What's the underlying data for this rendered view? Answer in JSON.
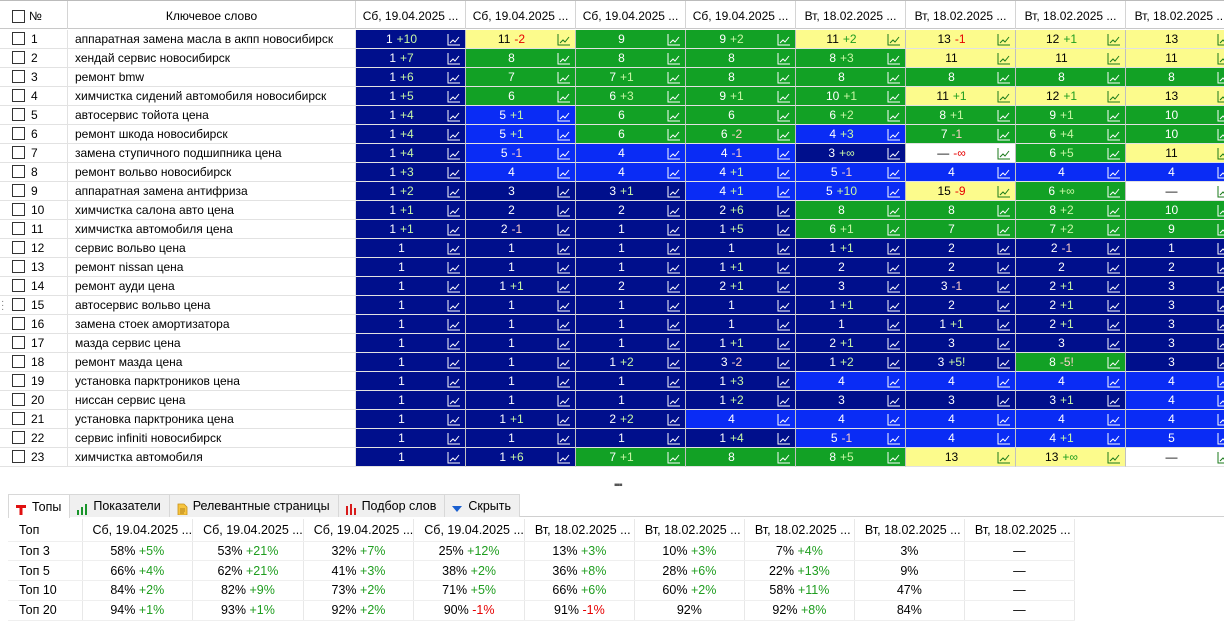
{
  "header": {
    "num_label": "№",
    "keyword_label": "Ключевое слово",
    "sort_indicator": "^",
    "dates": [
      "Сб, 19.04.2025 ...",
      "Сб, 19.04.2025 ...",
      "Сб, 19.04.2025 ...",
      "Сб, 19.04.2025 ...",
      "Вт, 18.02.2025 ...",
      "Вт, 18.02.2025 ...",
      "Вт, 18.02.2025 ...",
      "Вт, 18.02.2025 ..."
    ]
  },
  "legend_colors": {
    "c1": "#000f8c",
    "c2": "#0a2cf5",
    "c3": "#12a125",
    "c4": "#fcfb8c",
    "c5": "#ffffff"
  },
  "rows": [
    {
      "num": "1",
      "kw": "аппаратная замена масла в акпп новосибирск",
      "p": [
        [
          "1",
          "+10",
          "c1"
        ],
        [
          "11",
          "-2",
          "c4"
        ],
        [
          "9",
          "",
          "c3"
        ],
        [
          "9",
          "+2",
          "c3"
        ],
        [
          "11",
          "+2",
          "c4"
        ],
        [
          "13",
          "-1",
          "c4"
        ],
        [
          "12",
          "+1",
          "c4"
        ],
        [
          "13",
          "",
          "c4"
        ]
      ]
    },
    {
      "num": "2",
      "kw": "хендай сервис новосибирск",
      "p": [
        [
          "1",
          "+7",
          "c1"
        ],
        [
          "8",
          "",
          "c3"
        ],
        [
          "8",
          "",
          "c3"
        ],
        [
          "8",
          "",
          "c3"
        ],
        [
          "8",
          "+3",
          "c3"
        ],
        [
          "11",
          "",
          "c4"
        ],
        [
          "11",
          "",
          "c4"
        ],
        [
          "11",
          "",
          "c4"
        ]
      ]
    },
    {
      "num": "3",
      "kw": "ремонт bmw",
      "p": [
        [
          "1",
          "+6",
          "c1"
        ],
        [
          "7",
          "",
          "c3"
        ],
        [
          "7",
          "+1",
          "c3"
        ],
        [
          "8",
          "",
          "c3"
        ],
        [
          "8",
          "",
          "c3"
        ],
        [
          "8",
          "",
          "c3"
        ],
        [
          "8",
          "",
          "c3"
        ],
        [
          "8",
          "",
          "c3"
        ]
      ]
    },
    {
      "num": "4",
      "kw": "химчистка сидений автомобиля новосибирск",
      "p": [
        [
          "1",
          "+5",
          "c1"
        ],
        [
          "6",
          "",
          "c3"
        ],
        [
          "6",
          "+3",
          "c3"
        ],
        [
          "9",
          "+1",
          "c3"
        ],
        [
          "10",
          "+1",
          "c3"
        ],
        [
          "11",
          "+1",
          "c4"
        ],
        [
          "12",
          "+1",
          "c4"
        ],
        [
          "13",
          "",
          "c4"
        ]
      ]
    },
    {
      "num": "5",
      "kw": "автосервис тойота цена",
      "p": [
        [
          "1",
          "+4",
          "c1"
        ],
        [
          "5",
          "+1",
          "c2"
        ],
        [
          "6",
          "",
          "c3"
        ],
        [
          "6",
          "",
          "c3"
        ],
        [
          "6",
          "+2",
          "c3"
        ],
        [
          "8",
          "+1",
          "c3"
        ],
        [
          "9",
          "+1",
          "c3"
        ],
        [
          "10",
          "",
          "c3"
        ]
      ]
    },
    {
      "num": "6",
      "kw": "ремонт шкода новосибирск",
      "p": [
        [
          "1",
          "+4",
          "c1"
        ],
        [
          "5",
          "+1",
          "c2"
        ],
        [
          "6",
          "",
          "c3"
        ],
        [
          "6",
          "-2",
          "c3"
        ],
        [
          "4",
          "+3",
          "c2"
        ],
        [
          "7",
          "-1",
          "c3"
        ],
        [
          "6",
          "+4",
          "c3"
        ],
        [
          "10",
          "",
          "c3"
        ]
      ]
    },
    {
      "num": "7",
      "kw": "замена ступичного подшипника цена",
      "p": [
        [
          "1",
          "+4",
          "c1"
        ],
        [
          "5",
          "-1",
          "c2"
        ],
        [
          "4",
          "",
          "c2"
        ],
        [
          "4",
          "-1",
          "c2"
        ],
        [
          "3",
          "+∞",
          "c1"
        ],
        [
          "—",
          "-∞",
          "c5"
        ],
        [
          "6",
          "+5",
          "c3"
        ],
        [
          "11",
          "",
          "c4"
        ]
      ]
    },
    {
      "num": "8",
      "kw": "ремонт вольво новосибирск",
      "p": [
        [
          "1",
          "+3",
          "c1"
        ],
        [
          "4",
          "",
          "c2"
        ],
        [
          "4",
          "",
          "c2"
        ],
        [
          "4",
          "+1",
          "c2"
        ],
        [
          "5",
          "-1",
          "c2"
        ],
        [
          "4",
          "",
          "c2"
        ],
        [
          "4",
          "",
          "c2"
        ],
        [
          "4",
          "",
          "c2"
        ]
      ]
    },
    {
      "num": "9",
      "kw": "аппаратная замена антифриза",
      "p": [
        [
          "1",
          "+2",
          "c1"
        ],
        [
          "3",
          "",
          "c1"
        ],
        [
          "3",
          "+1",
          "c1"
        ],
        [
          "4",
          "+1",
          "c2"
        ],
        [
          "5",
          "+10",
          "c2"
        ],
        [
          "15",
          "-9",
          "c4"
        ],
        [
          "6",
          "+∞",
          "c3"
        ],
        [
          "—",
          "",
          "c5"
        ]
      ]
    },
    {
      "num": "10",
      "kw": "химчистка салона авто цена",
      "p": [
        [
          "1",
          "+1",
          "c1"
        ],
        [
          "2",
          "",
          "c1"
        ],
        [
          "2",
          "",
          "c1"
        ],
        [
          "2",
          "+6",
          "c1"
        ],
        [
          "8",
          "",
          "c3"
        ],
        [
          "8",
          "",
          "c3"
        ],
        [
          "8",
          "+2",
          "c3"
        ],
        [
          "10",
          "",
          "c3"
        ]
      ]
    },
    {
      "num": "11",
      "kw": "химчистка автомобиля цена",
      "p": [
        [
          "1",
          "+1",
          "c1"
        ],
        [
          "2",
          "-1",
          "c1"
        ],
        [
          "1",
          "",
          "c1"
        ],
        [
          "1",
          "+5",
          "c1"
        ],
        [
          "6",
          "+1",
          "c3"
        ],
        [
          "7",
          "",
          "c3"
        ],
        [
          "7",
          "+2",
          "c3"
        ],
        [
          "9",
          "",
          "c3"
        ]
      ]
    },
    {
      "num": "12",
      "kw": "сервис вольво цена",
      "p": [
        [
          "1",
          "",
          "c1"
        ],
        [
          "1",
          "",
          "c1"
        ],
        [
          "1",
          "",
          "c1"
        ],
        [
          "1",
          "",
          "c1"
        ],
        [
          "1",
          "+1",
          "c1"
        ],
        [
          "2",
          "",
          "c1"
        ],
        [
          "2",
          "-1",
          "c1"
        ],
        [
          "1",
          "",
          "c1"
        ]
      ]
    },
    {
      "num": "13",
      "kw": "ремонт nissan цена",
      "p": [
        [
          "1",
          "",
          "c1"
        ],
        [
          "1",
          "",
          "c1"
        ],
        [
          "1",
          "",
          "c1"
        ],
        [
          "1",
          "+1",
          "c1"
        ],
        [
          "2",
          "",
          "c1"
        ],
        [
          "2",
          "",
          "c1"
        ],
        [
          "2",
          "",
          "c1"
        ],
        [
          "2",
          "",
          "c1"
        ]
      ]
    },
    {
      "num": "14",
      "kw": "ремонт ауди цена",
      "p": [
        [
          "1",
          "",
          "c1"
        ],
        [
          "1",
          "+1",
          "c1"
        ],
        [
          "2",
          "",
          "c1"
        ],
        [
          "2",
          "+1",
          "c1"
        ],
        [
          "3",
          "",
          "c1"
        ],
        [
          "3",
          "-1",
          "c1"
        ],
        [
          "2",
          "+1",
          "c1"
        ],
        [
          "3",
          "",
          "c1"
        ]
      ]
    },
    {
      "num": "15",
      "kw": "автосервис вольво цена",
      "p": [
        [
          "1",
          "",
          "c1"
        ],
        [
          "1",
          "",
          "c1"
        ],
        [
          "1",
          "",
          "c1"
        ],
        [
          "1",
          "",
          "c1"
        ],
        [
          "1",
          "+1",
          "c1"
        ],
        [
          "2",
          "",
          "c1"
        ],
        [
          "2",
          "+1",
          "c1"
        ],
        [
          "3",
          "",
          "c1"
        ]
      ]
    },
    {
      "num": "16",
      "kw": "замена стоек амортизатора",
      "p": [
        [
          "1",
          "",
          "c1"
        ],
        [
          "1",
          "",
          "c1"
        ],
        [
          "1",
          "",
          "c1"
        ],
        [
          "1",
          "",
          "c1"
        ],
        [
          "1",
          "",
          "c1"
        ],
        [
          "1",
          "+1",
          "c1"
        ],
        [
          "2",
          "+1",
          "c1"
        ],
        [
          "3",
          "",
          "c1"
        ]
      ]
    },
    {
      "num": "17",
      "kw": "мазда сервис цена",
      "p": [
        [
          "1",
          "",
          "c1"
        ],
        [
          "1",
          "",
          "c1"
        ],
        [
          "1",
          "",
          "c1"
        ],
        [
          "1",
          "+1",
          "c1"
        ],
        [
          "2",
          "+1",
          "c1"
        ],
        [
          "3",
          "",
          "c1"
        ],
        [
          "3",
          "",
          "c1"
        ],
        [
          "3",
          "",
          "c1"
        ]
      ]
    },
    {
      "num": "18",
      "kw": "ремонт мазда цена",
      "p": [
        [
          "1",
          "",
          "c1"
        ],
        [
          "1",
          "",
          "c1"
        ],
        [
          "1",
          "+2",
          "c1"
        ],
        [
          "3",
          "-2",
          "c1"
        ],
        [
          "1",
          "+2",
          "c1"
        ],
        [
          "3",
          "+5!",
          "c1"
        ],
        [
          "8",
          "-5!",
          "c3"
        ],
        [
          "3",
          "",
          "c1"
        ]
      ]
    },
    {
      "num": "19",
      "kw": "установка парктроников цена",
      "p": [
        [
          "1",
          "",
          "c1"
        ],
        [
          "1",
          "",
          "c1"
        ],
        [
          "1",
          "",
          "c1"
        ],
        [
          "1",
          "+3",
          "c1"
        ],
        [
          "4",
          "",
          "c2"
        ],
        [
          "4",
          "",
          "c2"
        ],
        [
          "4",
          "",
          "c2"
        ],
        [
          "4",
          "",
          "c2"
        ]
      ]
    },
    {
      "num": "20",
      "kw": "ниссан сервис цена",
      "p": [
        [
          "1",
          "",
          "c1"
        ],
        [
          "1",
          "",
          "c1"
        ],
        [
          "1",
          "",
          "c1"
        ],
        [
          "1",
          "+2",
          "c1"
        ],
        [
          "3",
          "",
          "c1"
        ],
        [
          "3",
          "",
          "c1"
        ],
        [
          "3",
          "+1",
          "c1"
        ],
        [
          "4",
          "",
          "c2"
        ]
      ]
    },
    {
      "num": "21",
      "kw": "установка парктроника цена",
      "p": [
        [
          "1",
          "",
          "c1"
        ],
        [
          "1",
          "+1",
          "c1"
        ],
        [
          "2",
          "+2",
          "c1"
        ],
        [
          "4",
          "",
          "c2"
        ],
        [
          "4",
          "",
          "c2"
        ],
        [
          "4",
          "",
          "c2"
        ],
        [
          "4",
          "",
          "c2"
        ],
        [
          "4",
          "",
          "c2"
        ]
      ]
    },
    {
      "num": "22",
      "kw": "сервис infiniti новосибирск",
      "p": [
        [
          "1",
          "",
          "c1"
        ],
        [
          "1",
          "",
          "c1"
        ],
        [
          "1",
          "",
          "c1"
        ],
        [
          "1",
          "+4",
          "c1"
        ],
        [
          "5",
          "-1",
          "c2"
        ],
        [
          "4",
          "",
          "c2"
        ],
        [
          "4",
          "+1",
          "c2"
        ],
        [
          "5",
          "",
          "c2"
        ]
      ]
    },
    {
      "num": "23",
      "kw": "химчистка автомобиля",
      "p": [
        [
          "1",
          "",
          "c1"
        ],
        [
          "1",
          "+6",
          "c1"
        ],
        [
          "7",
          "+1",
          "c3"
        ],
        [
          "8",
          "",
          "c3"
        ],
        [
          "8",
          "+5",
          "c3"
        ],
        [
          "13",
          "",
          "c4"
        ],
        [
          "13",
          "+∞",
          "c4"
        ],
        [
          "—",
          "",
          "c5"
        ]
      ]
    }
  ],
  "tabs": [
    {
      "label": "Топы",
      "icon": "T-icon",
      "active": true
    },
    {
      "label": "Показатели",
      "icon": "bar-chart-icon",
      "active": false
    },
    {
      "label": "Релевантные страницы",
      "icon": "document-icon",
      "active": false
    },
    {
      "label": "Подбор слов",
      "icon": "red-bars-icon",
      "active": false
    },
    {
      "label": "Скрыть",
      "icon": "triangle-down-icon",
      "active": false
    }
  ],
  "tops": {
    "header": [
      "Топ",
      "Сб, 19.04.2025 ...",
      "Сб, 19.04.2025 ...",
      "Сб, 19.04.2025 ...",
      "Сб, 19.04.2025 ...",
      "Вт, 18.02.2025 ...",
      "Вт, 18.02.2025 ...",
      "Вт, 18.02.2025 ...",
      "Вт, 18.02.2025 ...",
      "Вт, 18.02.2025 ..."
    ],
    "rows": [
      {
        "label": "Топ 3",
        "vals": [
          [
            "58%",
            "+5%"
          ],
          [
            "53%",
            "+21%"
          ],
          [
            "32%",
            "+7%"
          ],
          [
            "25%",
            "+12%"
          ],
          [
            "13%",
            "+3%"
          ],
          [
            "10%",
            "+3%"
          ],
          [
            "7%",
            "+4%"
          ],
          [
            "3%",
            ""
          ],
          [
            "—",
            ""
          ]
        ]
      },
      {
        "label": "Топ 5",
        "vals": [
          [
            "66%",
            "+4%"
          ],
          [
            "62%",
            "+21%"
          ],
          [
            "41%",
            "+3%"
          ],
          [
            "38%",
            "+2%"
          ],
          [
            "36%",
            "+8%"
          ],
          [
            "28%",
            "+6%"
          ],
          [
            "22%",
            "+13%"
          ],
          [
            "9%",
            ""
          ],
          [
            "—",
            ""
          ]
        ]
      },
      {
        "label": "Топ 10",
        "vals": [
          [
            "84%",
            "+2%"
          ],
          [
            "82%",
            "+9%"
          ],
          [
            "73%",
            "+2%"
          ],
          [
            "71%",
            "+5%"
          ],
          [
            "66%",
            "+6%"
          ],
          [
            "60%",
            "+2%"
          ],
          [
            "58%",
            "+11%"
          ],
          [
            "47%",
            ""
          ],
          [
            "—",
            ""
          ]
        ]
      },
      {
        "label": "Топ 20",
        "vals": [
          [
            "94%",
            "+1%"
          ],
          [
            "93%",
            "+1%"
          ],
          [
            "92%",
            "+2%"
          ],
          [
            "90%",
            "-1%"
          ],
          [
            "91%",
            "-1%"
          ],
          [
            "92%",
            ""
          ],
          [
            "92%",
            "+8%"
          ],
          [
            "84%",
            ""
          ],
          [
            "—",
            ""
          ]
        ]
      }
    ]
  }
}
